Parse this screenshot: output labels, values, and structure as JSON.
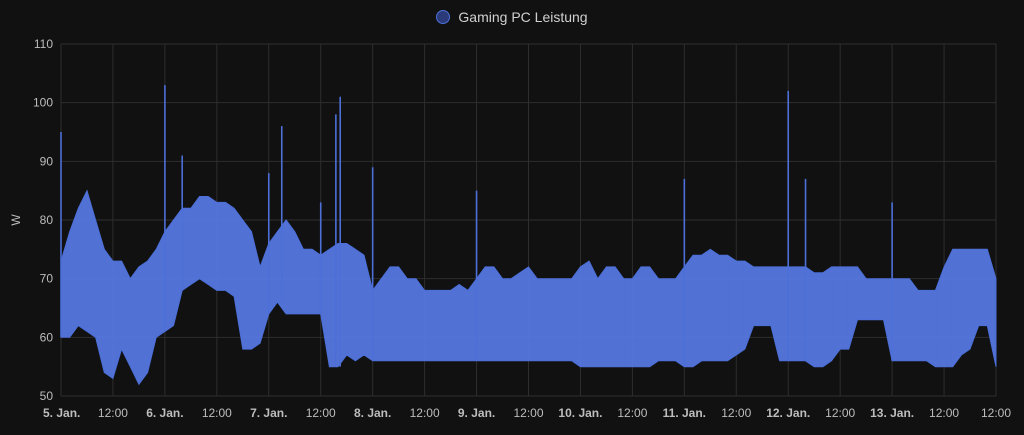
{
  "chart_data": {
    "type": "line",
    "title": "",
    "ylabel": "W",
    "xlabel": "",
    "ylim": [
      50,
      110
    ],
    "yticks": [
      50,
      60,
      70,
      80,
      90,
      100,
      110
    ],
    "xlim": [
      "2024-01-05T00:00",
      "2024-01-14T00:00"
    ],
    "grid": true,
    "legend_position": "top-center",
    "colors": {
      "series": "#4c6fd8",
      "fill": "#5577e0",
      "grid": "#2e2e2e",
      "axis_text": "#bdbdbd"
    },
    "x_tick_labels": [
      {
        "label": "5. Jan.",
        "x": "2024-01-05T00:00",
        "bold": true
      },
      {
        "label": "12:00",
        "x": "2024-01-05T12:00",
        "bold": false
      },
      {
        "label": "6. Jan.",
        "x": "2024-01-06T00:00",
        "bold": true
      },
      {
        "label": "12:00",
        "x": "2024-01-06T12:00",
        "bold": false
      },
      {
        "label": "7. Jan.",
        "x": "2024-01-07T00:00",
        "bold": true
      },
      {
        "label": "12:00",
        "x": "2024-01-07T12:00",
        "bold": false
      },
      {
        "label": "8. Jan.",
        "x": "2024-01-08T00:00",
        "bold": true
      },
      {
        "label": "12:00",
        "x": "2024-01-08T12:00",
        "bold": false
      },
      {
        "label": "9. Jan.",
        "x": "2024-01-09T00:00",
        "bold": true
      },
      {
        "label": "12:00",
        "x": "2024-01-09T12:00",
        "bold": false
      },
      {
        "label": "10. Jan.",
        "x": "2024-01-10T00:00",
        "bold": true
      },
      {
        "label": "12:00",
        "x": "2024-01-10T12:00",
        "bold": false
      },
      {
        "label": "11. Jan.",
        "x": "2024-01-11T00:00",
        "bold": true
      },
      {
        "label": "12:00",
        "x": "2024-01-11T12:00",
        "bold": false
      },
      {
        "label": "12. Jan.",
        "x": "2024-01-12T00:00",
        "bold": true
      },
      {
        "label": "12:00",
        "x": "2024-01-12T12:00",
        "bold": false
      },
      {
        "label": "13. Jan.",
        "x": "2024-01-13T00:00",
        "bold": true
      },
      {
        "label": "12:00",
        "x": "2024-01-13T12:00",
        "bold": false
      }
    ],
    "series": [
      {
        "name": "Gaming PC Leistung",
        "band": {
          "note": "dense noisy power signal shown as min/max envelope per time window",
          "x": [
            "2024-01-05T00:00",
            "2024-01-05T02:00",
            "2024-01-05T04:00",
            "2024-01-05T06:00",
            "2024-01-05T08:00",
            "2024-01-05T10:00",
            "2024-01-05T12:00",
            "2024-01-05T14:00",
            "2024-01-05T16:00",
            "2024-01-05T18:00",
            "2024-01-05T20:00",
            "2024-01-05T22:00",
            "2024-01-06T00:00",
            "2024-01-06T02:00",
            "2024-01-06T04:00",
            "2024-01-06T06:00",
            "2024-01-06T08:00",
            "2024-01-06T10:00",
            "2024-01-06T12:00",
            "2024-01-06T14:00",
            "2024-01-06T16:00",
            "2024-01-06T18:00",
            "2024-01-06T20:00",
            "2024-01-06T22:00",
            "2024-01-07T00:00",
            "2024-01-07T02:00",
            "2024-01-07T04:00",
            "2024-01-07T06:00",
            "2024-01-07T08:00",
            "2024-01-07T10:00",
            "2024-01-07T12:00",
            "2024-01-07T14:00",
            "2024-01-07T16:00",
            "2024-01-07T18:00",
            "2024-01-07T20:00",
            "2024-01-07T22:00",
            "2024-01-08T00:00",
            "2024-01-08T02:00",
            "2024-01-08T04:00",
            "2024-01-08T06:00",
            "2024-01-08T08:00",
            "2024-01-08T10:00",
            "2024-01-08T12:00",
            "2024-01-08T14:00",
            "2024-01-08T16:00",
            "2024-01-08T18:00",
            "2024-01-08T20:00",
            "2024-01-08T22:00",
            "2024-01-09T00:00",
            "2024-01-09T02:00",
            "2024-01-09T04:00",
            "2024-01-09T06:00",
            "2024-01-09T08:00",
            "2024-01-09T10:00",
            "2024-01-09T12:00",
            "2024-01-09T14:00",
            "2024-01-09T16:00",
            "2024-01-09T18:00",
            "2024-01-09T20:00",
            "2024-01-09T22:00",
            "2024-01-10T00:00",
            "2024-01-10T02:00",
            "2024-01-10T04:00",
            "2024-01-10T06:00",
            "2024-01-10T08:00",
            "2024-01-10T10:00",
            "2024-01-10T12:00",
            "2024-01-10T14:00",
            "2024-01-10T16:00",
            "2024-01-10T18:00",
            "2024-01-10T20:00",
            "2024-01-10T22:00",
            "2024-01-11T00:00",
            "2024-01-11T02:00",
            "2024-01-11T04:00",
            "2024-01-11T06:00",
            "2024-01-11T08:00",
            "2024-01-11T10:00",
            "2024-01-11T12:00",
            "2024-01-11T14:00",
            "2024-01-11T16:00",
            "2024-01-11T18:00",
            "2024-01-11T20:00",
            "2024-01-11T22:00",
            "2024-01-12T00:00",
            "2024-01-12T02:00",
            "2024-01-12T04:00",
            "2024-01-12T06:00",
            "2024-01-12T08:00",
            "2024-01-12T10:00",
            "2024-01-12T12:00",
            "2024-01-12T14:00",
            "2024-01-12T16:00",
            "2024-01-12T18:00",
            "2024-01-12T20:00",
            "2024-01-12T22:00",
            "2024-01-13T00:00",
            "2024-01-13T02:00",
            "2024-01-13T04:00",
            "2024-01-13T06:00",
            "2024-01-13T08:00",
            "2024-01-13T10:00",
            "2024-01-13T12:00",
            "2024-01-13T14:00",
            "2024-01-13T16:00",
            "2024-01-13T18:00",
            "2024-01-13T20:00",
            "2024-01-13T22:00",
            "2024-01-14T00:00"
          ],
          "min": [
            60,
            60,
            62,
            61,
            60,
            54,
            53,
            58,
            55,
            52,
            54,
            60,
            61,
            62,
            68,
            69,
            70,
            69,
            68,
            68,
            67,
            58,
            58,
            59,
            64,
            66,
            64,
            64,
            64,
            64,
            64,
            55,
            55,
            57,
            56,
            57,
            56,
            56,
            56,
            56,
            56,
            56,
            56,
            56,
            56,
            56,
            56,
            56,
            56,
            56,
            56,
            56,
            56,
            56,
            56,
            56,
            56,
            56,
            56,
            56,
            55,
            55,
            55,
            55,
            55,
            55,
            55,
            55,
            55,
            56,
            56,
            56,
            55,
            55,
            56,
            56,
            56,
            56,
            57,
            58,
            62,
            62,
            62,
            56,
            56,
            56,
            56,
            55,
            55,
            56,
            58,
            58,
            63,
            63,
            63,
            63,
            56,
            56,
            56,
            56,
            56,
            55,
            55,
            55,
            57,
            58,
            62,
            62,
            55
          ],
          "max": [
            73,
            78,
            82,
            85,
            80,
            75,
            73,
            73,
            70,
            72,
            73,
            75,
            78,
            80,
            82,
            82,
            84,
            84,
            83,
            83,
            82,
            80,
            78,
            72,
            76,
            78,
            80,
            78,
            75,
            75,
            74,
            75,
            76,
            76,
            75,
            74,
            68,
            70,
            72,
            72,
            70,
            70,
            68,
            68,
            68,
            68,
            69,
            68,
            70,
            72,
            72,
            70,
            70,
            71,
            72,
            70,
            70,
            70,
            70,
            70,
            72,
            73,
            70,
            72,
            72,
            70,
            70,
            72,
            72,
            70,
            70,
            70,
            72,
            74,
            74,
            75,
            74,
            74,
            73,
            73,
            72,
            72,
            72,
            72,
            72,
            72,
            72,
            71,
            71,
            72,
            72,
            72,
            72,
            70,
            70,
            70,
            70,
            70,
            70,
            68,
            68,
            68,
            72,
            75,
            75,
            75,
            75,
            75,
            70
          ]
        },
        "spikes": [
          {
            "x": "2024-01-05T00:00",
            "y": 95
          },
          {
            "x": "2024-01-06T00:00",
            "y": 103
          },
          {
            "x": "2024-01-06T04:00",
            "y": 91
          },
          {
            "x": "2024-01-07T00:00",
            "y": 88
          },
          {
            "x": "2024-01-07T03:00",
            "y": 96
          },
          {
            "x": "2024-01-07T12:00",
            "y": 83
          },
          {
            "x": "2024-01-07T15:30",
            "y": 98
          },
          {
            "x": "2024-01-07T16:30",
            "y": 101
          },
          {
            "x": "2024-01-08T00:00",
            "y": 89
          },
          {
            "x": "2024-01-09T00:00",
            "y": 85
          },
          {
            "x": "2024-01-11T00:00",
            "y": 87
          },
          {
            "x": "2024-01-12T00:00",
            "y": 102
          },
          {
            "x": "2024-01-12T04:00",
            "y": 87
          },
          {
            "x": "2024-01-13T00:00",
            "y": 83
          }
        ]
      }
    ]
  }
}
